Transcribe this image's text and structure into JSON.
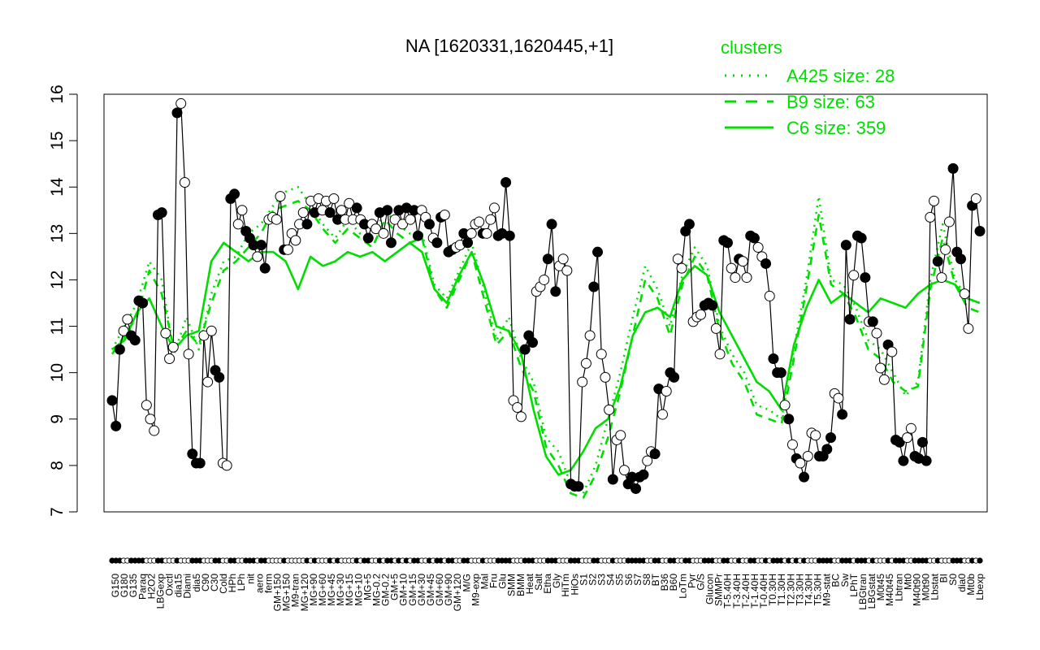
{
  "chart_data": {
    "type": "line",
    "title": "NA [1620331,1620445,+1]",
    "ylim": [
      7,
      16
    ],
    "yticks": [
      7,
      8,
      9,
      10,
      11,
      12,
      13,
      14,
      15,
      16
    ],
    "grid": false,
    "colors": {
      "series": "#00dd00",
      "line": "#000000",
      "point_fill_open": "#ffffff",
      "point_fill_filled": "#000000"
    },
    "legend": {
      "title": "clusters",
      "placement": "top-right",
      "entries": [
        {
          "label": "A425 size: 28",
          "style": "dotted"
        },
        {
          "label": "B9 size: 63",
          "style": "dashed"
        },
        {
          "label": "C6 size: 359",
          "style": "solid"
        }
      ]
    },
    "x_labels": [
      "G150",
      "G180",
      "G135",
      "Paraq",
      "H2O2",
      "LBGexp",
      "Oxctl",
      "dia15",
      "Diami",
      "dia5",
      "C90",
      "C30",
      "Cold",
      "HPh",
      "LPh",
      "nit",
      "aero",
      "ferm",
      "GM+150",
      "MG+150",
      "M9-tran",
      "MG+120",
      "MG+90",
      "MG+60",
      "MG+45",
      "MG+30",
      "MG+15",
      "MG+10",
      "MG+5",
      "MG-0.2",
      "GM-0.2",
      "GM+5",
      "GM+10",
      "GM+15",
      "GM+30",
      "GM+45",
      "GM+60",
      "GM+90",
      "GM+120",
      "M/G",
      "M9-exp",
      "Mal",
      "Fru",
      "Glu",
      "SMM",
      "BMM",
      "Heat",
      "Salt",
      "Etha",
      "Gly",
      "HiTm",
      "HiOs",
      "S1",
      "S2",
      "S3",
      "S4",
      "S5",
      "S6",
      "S7",
      "S8",
      "BT",
      "B36",
      "B60",
      "LoTm",
      "Pyr",
      "G/S",
      "Glucon",
      "SMMPr",
      "T-5.40H",
      "T-3.40H",
      "T-2.40H",
      "T-1.40H",
      "T-0.40H",
      "T0.30H",
      "T1.30H",
      "T2.30H",
      "T3.30H",
      "T4.30H",
      "T5.30H",
      "M9-stat",
      "BC",
      "Sw",
      "LPhT",
      "LBGtran",
      "LBGstat",
      "M0t45",
      "M40t45",
      "Lbtran",
      "Mt0",
      "M40t90",
      "M0t90",
      "Lbstat",
      "BI",
      "S0",
      "dia0",
      "Mt0b",
      "Lbexp"
    ],
    "points": [
      [
        0,
        9.4,
        1
      ],
      [
        1,
        8.85,
        1
      ],
      [
        2,
        10.5,
        1
      ],
      [
        3,
        10.9,
        0
      ],
      [
        4,
        11.15,
        0
      ],
      [
        5,
        10.8,
        1
      ],
      [
        6,
        10.7,
        1
      ],
      [
        7,
        11.55,
        1
      ],
      [
        8,
        11.5,
        1
      ],
      [
        9,
        9.3,
        0
      ],
      [
        10,
        9.0,
        0
      ],
      [
        11,
        8.75,
        0
      ],
      [
        12,
        13.4,
        1
      ],
      [
        13,
        13.45,
        1
      ],
      [
        14,
        10.85,
        0
      ],
      [
        15,
        10.3,
        0
      ],
      [
        16,
        10.55,
        0
      ],
      [
        17,
        15.6,
        1
      ],
      [
        18,
        15.8,
        0
      ],
      [
        19,
        14.1,
        0
      ],
      [
        20,
        10.4,
        0
      ],
      [
        21,
        8.25,
        1
      ],
      [
        22,
        8.05,
        1
      ],
      [
        23,
        8.05,
        1
      ],
      [
        24,
        10.8,
        0
      ],
      [
        25,
        9.8,
        0
      ],
      [
        26,
        10.9,
        0
      ],
      [
        27,
        10.05,
        1
      ],
      [
        28,
        9.9,
        1
      ],
      [
        29,
        8.05,
        0
      ],
      [
        30,
        8.0,
        0
      ],
      [
        31,
        13.75,
        1
      ],
      [
        32,
        13.85,
        1
      ],
      [
        33,
        13.2,
        0
      ],
      [
        34,
        13.5,
        0
      ],
      [
        35,
        13.05,
        1
      ],
      [
        36,
        12.9,
        1
      ],
      [
        37,
        12.75,
        1
      ],
      [
        38,
        12.5,
        0
      ],
      [
        39,
        12.75,
        1
      ],
      [
        40,
        12.25,
        1
      ],
      [
        41,
        13.3,
        0
      ],
      [
        42,
        13.35,
        0
      ],
      [
        43,
        13.3,
        0
      ],
      [
        44,
        13.8,
        0
      ],
      [
        45,
        12.65,
        1
      ],
      [
        46,
        12.65,
        0
      ],
      [
        47,
        13.0,
        0
      ],
      [
        48,
        12.85,
        0
      ],
      [
        49,
        13.2,
        0
      ],
      [
        50,
        13.45,
        0
      ],
      [
        51,
        13.2,
        1
      ],
      [
        52,
        13.7,
        0
      ],
      [
        53,
        13.45,
        1
      ],
      [
        54,
        13.75,
        0
      ],
      [
        55,
        13.5,
        0
      ],
      [
        56,
        13.7,
        0
      ],
      [
        57,
        13.45,
        1
      ],
      [
        58,
        13.75,
        0
      ],
      [
        59,
        13.3,
        1
      ],
      [
        60,
        13.5,
        0
      ],
      [
        61,
        13.3,
        0
      ],
      [
        62,
        13.65,
        0
      ],
      [
        63,
        13.3,
        0
      ],
      [
        64,
        13.55,
        1
      ],
      [
        65,
        13.3,
        0
      ],
      [
        66,
        13.2,
        1
      ],
      [
        67,
        12.9,
        1
      ],
      [
        68,
        13.2,
        0
      ],
      [
        69,
        13.1,
        0
      ],
      [
        70,
        13.45,
        1
      ],
      [
        71,
        13.0,
        0
      ],
      [
        72,
        13.5,
        1
      ],
      [
        73,
        12.8,
        1
      ],
      [
        74,
        13.3,
        0
      ],
      [
        75,
        13.5,
        1
      ],
      [
        76,
        13.2,
        0
      ],
      [
        77,
        13.55,
        1
      ],
      [
        78,
        13.3,
        0
      ],
      [
        79,
        13.5,
        1
      ],
      [
        80,
        12.95,
        1
      ],
      [
        81,
        13.5,
        0
      ],
      [
        82,
        13.35,
        0
      ],
      [
        83,
        13.2,
        1
      ],
      [
        84,
        12.9,
        0
      ],
      [
        85,
        12.8,
        1
      ],
      [
        86,
        13.35,
        1
      ],
      [
        87,
        13.4,
        0
      ],
      [
        88,
        12.6,
        1
      ],
      [
        89,
        12.65,
        1
      ],
      [
        90,
        12.7,
        0
      ],
      [
        91,
        12.75,
        0
      ],
      [
        92,
        13.0,
        1
      ],
      [
        93,
        12.8,
        1
      ],
      [
        94,
        13.0,
        0
      ],
      [
        95,
        13.2,
        0
      ],
      [
        96,
        13.25,
        0
      ],
      [
        97,
        13.0,
        1
      ],
      [
        98,
        13.0,
        0
      ],
      [
        99,
        13.3,
        0
      ],
      [
        100,
        13.55,
        0
      ],
      [
        101,
        12.95,
        1
      ],
      [
        102,
        13.0,
        1
      ],
      [
        103,
        14.1,
        1
      ],
      [
        104,
        12.95,
        1
      ],
      [
        105,
        9.4,
        0
      ],
      [
        106,
        9.25,
        0
      ],
      [
        107,
        9.05,
        0
      ],
      [
        108,
        10.5,
        1
      ],
      [
        109,
        10.8,
        1
      ],
      [
        110,
        10.65,
        1
      ],
      [
        111,
        11.75,
        0
      ],
      [
        112,
        11.85,
        0
      ],
      [
        113,
        12.0,
        0
      ],
      [
        114,
        12.45,
        1
      ],
      [
        115,
        13.2,
        1
      ],
      [
        116,
        11.75,
        1
      ],
      [
        117,
        12.3,
        0
      ],
      [
        118,
        12.45,
        0
      ],
      [
        119,
        12.2,
        0
      ],
      [
        120,
        7.6,
        1
      ],
      [
        121,
        7.55,
        1
      ],
      [
        122,
        7.55,
        1
      ],
      [
        123,
        9.8,
        0
      ],
      [
        124,
        10.2,
        0
      ],
      [
        125,
        10.8,
        0
      ],
      [
        126,
        11.85,
        1
      ],
      [
        127,
        12.6,
        1
      ],
      [
        128,
        10.4,
        0
      ],
      [
        129,
        9.9,
        0
      ],
      [
        130,
        9.2,
        0
      ],
      [
        131,
        7.7,
        1
      ],
      [
        132,
        8.55,
        0
      ],
      [
        133,
        8.65,
        0
      ],
      [
        134,
        7.9,
        0
      ],
      [
        135,
        7.6,
        1
      ],
      [
        136,
        7.75,
        1
      ],
      [
        137,
        7.5,
        1
      ],
      [
        138,
        7.75,
        1
      ],
      [
        139,
        7.8,
        1
      ],
      [
        140,
        8.1,
        0
      ],
      [
        141,
        8.3,
        0
      ],
      [
        142,
        8.25,
        1
      ],
      [
        143,
        9.65,
        1
      ],
      [
        144,
        9.1,
        0
      ],
      [
        145,
        9.6,
        0
      ],
      [
        146,
        10.0,
        1
      ],
      [
        147,
        9.9,
        1
      ],
      [
        148,
        12.45,
        0
      ],
      [
        149,
        12.25,
        0
      ],
      [
        150,
        13.05,
        1
      ],
      [
        151,
        13.2,
        1
      ],
      [
        152,
        11.1,
        0
      ],
      [
        153,
        11.2,
        0
      ],
      [
        154,
        11.25,
        0
      ],
      [
        155,
        11.45,
        1
      ],
      [
        156,
        11.5,
        1
      ],
      [
        157,
        11.45,
        1
      ],
      [
        158,
        10.95,
        0
      ],
      [
        159,
        10.4,
        0
      ],
      [
        160,
        12.85,
        1
      ],
      [
        161,
        12.8,
        1
      ],
      [
        162,
        12.25,
        0
      ],
      [
        163,
        12.05,
        0
      ],
      [
        164,
        12.45,
        1
      ],
      [
        165,
        12.4,
        0
      ],
      [
        166,
        12.05,
        0
      ],
      [
        167,
        12.95,
        1
      ],
      [
        168,
        12.9,
        1
      ],
      [
        169,
        12.7,
        0
      ],
      [
        170,
        12.5,
        0
      ],
      [
        171,
        12.35,
        1
      ],
      [
        172,
        11.65,
        0
      ],
      [
        173,
        10.3,
        1
      ],
      [
        174,
        10.0,
        1
      ],
      [
        175,
        10.0,
        1
      ],
      [
        176,
        9.3,
        0
      ],
      [
        177,
        9.0,
        1
      ],
      [
        178,
        8.45,
        0
      ],
      [
        179,
        8.15,
        1
      ],
      [
        180,
        8.05,
        0
      ],
      [
        181,
        7.75,
        1
      ],
      [
        182,
        8.2,
        0
      ],
      [
        183,
        8.7,
        0
      ],
      [
        184,
        8.65,
        0
      ],
      [
        185,
        8.2,
        1
      ],
      [
        186,
        8.2,
        1
      ],
      [
        187,
        8.35,
        1
      ],
      [
        188,
        8.6,
        1
      ],
      [
        189,
        9.55,
        0
      ],
      [
        190,
        9.45,
        0
      ],
      [
        191,
        9.1,
        1
      ],
      [
        192,
        12.75,
        1
      ],
      [
        193,
        11.15,
        1
      ],
      [
        194,
        12.1,
        0
      ],
      [
        195,
        12.95,
        1
      ],
      [
        196,
        12.9,
        1
      ],
      [
        197,
        12.05,
        1
      ],
      [
        198,
        11.1,
        0
      ],
      [
        199,
        11.1,
        1
      ],
      [
        200,
        10.85,
        0
      ],
      [
        201,
        10.1,
        0
      ],
      [
        202,
        9.85,
        0
      ],
      [
        203,
        10.6,
        1
      ],
      [
        204,
        10.45,
        0
      ],
      [
        205,
        8.55,
        1
      ],
      [
        206,
        8.5,
        1
      ],
      [
        207,
        8.1,
        1
      ],
      [
        208,
        8.6,
        0
      ],
      [
        209,
        8.8,
        0
      ],
      [
        210,
        8.2,
        1
      ],
      [
        211,
        8.15,
        1
      ],
      [
        212,
        8.5,
        1
      ],
      [
        213,
        8.1,
        1
      ],
      [
        214,
        13.35,
        0
      ],
      [
        215,
        13.7,
        0
      ],
      [
        216,
        12.4,
        1
      ],
      [
        217,
        12.05,
        0
      ],
      [
        218,
        12.65,
        0
      ],
      [
        219,
        13.25,
        0
      ],
      [
        220,
        14.4,
        1
      ],
      [
        221,
        12.6,
        1
      ],
      [
        222,
        12.45,
        1
      ],
      [
        223,
        11.7,
        0
      ],
      [
        224,
        10.95,
        0
      ],
      [
        225,
        13.6,
        1
      ],
      [
        226,
        13.75,
        0
      ],
      [
        227,
        13.05,
        1
      ]
    ],
    "series": [
      {
        "name": "A425 size: 28",
        "style": "dotted",
        "values": [
          10.5,
          11.0,
          11.5,
          12.4,
          12.0,
          10.4,
          11.2,
          10.5,
          11.7,
          12.4,
          12.5,
          13.0,
          13.2,
          13.6,
          13.9,
          14.0,
          13.6,
          13.2,
          12.9,
          13.3,
          13.0,
          12.9,
          13.5,
          13.2,
          13.0,
          13.0,
          11.9,
          11.6,
          12.2,
          12.8,
          11.8,
          10.7,
          11.2,
          10.3,
          9.8,
          8.6,
          8.3,
          7.6,
          7.4,
          8.0,
          9.0,
          10.0,
          11.2,
          12.3,
          11.8,
          11.0,
          12.1,
          12.7,
          12.3,
          11.0,
          10.4,
          10.0,
          9.3,
          9.2,
          9.0,
          10.5,
          12.0,
          13.8,
          12.0,
          11.9,
          11.4,
          10.7,
          10.5,
          10.0,
          9.5,
          9.8,
          12.0,
          13.2,
          12.0,
          11.6,
          11.5
        ]
      },
      {
        "name": "B9 size: 63",
        "style": "dashed",
        "values": [
          10.4,
          10.8,
          11.2,
          12.2,
          11.7,
          10.5,
          10.9,
          10.6,
          11.5,
          12.2,
          12.4,
          12.7,
          13.0,
          13.5,
          13.6,
          13.7,
          13.5,
          13.1,
          12.8,
          13.1,
          12.9,
          12.7,
          13.3,
          13.0,
          12.8,
          12.9,
          11.8,
          11.4,
          12.0,
          12.6,
          11.6,
          10.6,
          10.9,
          10.1,
          9.6,
          8.4,
          8.0,
          7.4,
          7.3,
          7.8,
          8.6,
          9.6,
          10.8,
          12.0,
          11.6,
          10.8,
          11.9,
          12.5,
          12.1,
          10.9,
          10.2,
          9.8,
          9.1,
          9.0,
          8.9,
          10.3,
          11.8,
          13.4,
          11.9,
          11.7,
          11.2,
          10.5,
          10.3,
          9.8,
          9.6,
          9.7,
          11.8,
          12.9,
          11.9,
          11.4,
          11.3
        ]
      },
      {
        "name": "C6 size: 359",
        "style": "solid",
        "values": [
          10.5,
          10.7,
          11.3,
          11.6,
          11.0,
          10.5,
          10.8,
          10.9,
          12.4,
          12.8,
          12.6,
          12.4,
          12.6,
          12.6,
          12.4,
          11.8,
          12.5,
          12.3,
          12.4,
          12.6,
          12.5,
          12.6,
          12.4,
          12.6,
          12.8,
          12.6,
          11.8,
          11.5,
          12.1,
          12.6,
          11.9,
          11.0,
          10.9,
          10.4,
          9.2,
          8.2,
          7.8,
          7.9,
          8.3,
          8.8,
          9.0,
          9.7,
          10.8,
          11.3,
          11.4,
          11.2,
          12.0,
          12.3,
          12.1,
          11.3,
          10.8,
          10.3,
          9.8,
          9.6,
          9.2,
          10.6,
          11.4,
          12.0,
          11.5,
          11.7,
          11.5,
          11.3,
          11.6,
          11.5,
          11.4,
          11.7,
          11.9,
          12.0,
          11.9,
          11.6,
          11.5
        ]
      }
    ]
  }
}
